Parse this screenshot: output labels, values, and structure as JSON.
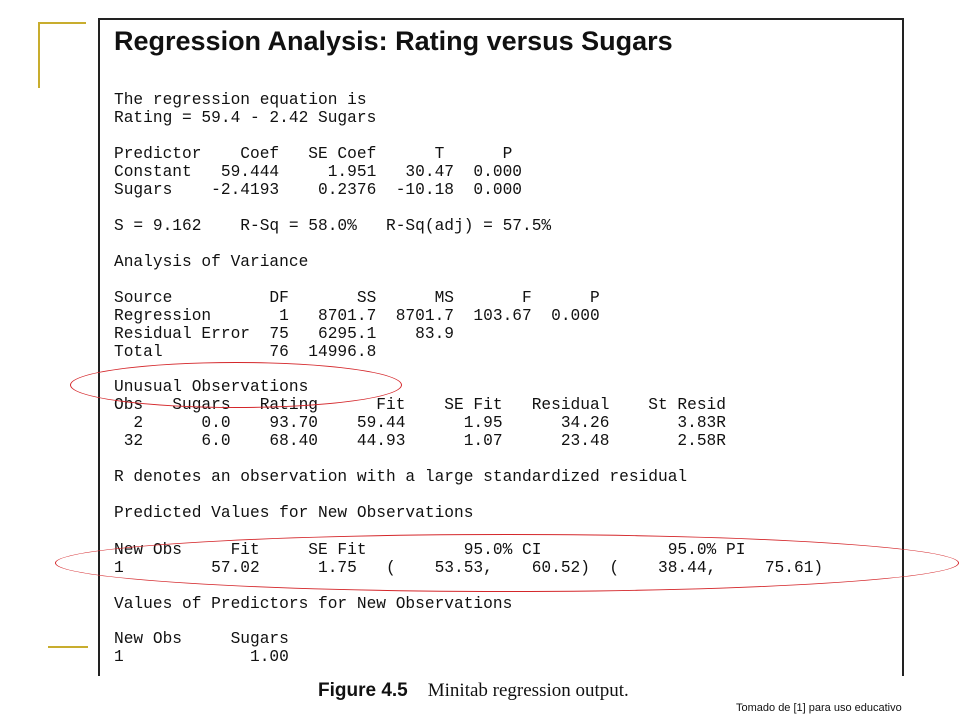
{
  "title": "Regression Analysis: Rating versus Sugars",
  "equation": {
    "line1": "The regression equation is",
    "line2": "Rating = 59.4 - 2.42 Sugars"
  },
  "coefficients": {
    "header": "Predictor    Coef   SE Coef      T      P",
    "rows": [
      "Constant   59.444     1.951   30.47  0.000",
      "Sugars    -2.4193    0.2376  -10.18  0.000"
    ]
  },
  "fit_summary": "S = 9.162    R-Sq = 58.0%   R-Sq(adj) = 57.5%",
  "anova": {
    "title": "Analysis of Variance",
    "header": "Source          DF       SS      MS       F      P",
    "rows": [
      "Regression       1   8701.7  8701.7  103.67  0.000",
      "Residual Error  75   6295.1    83.9",
      "Total           76  14996.8"
    ]
  },
  "unusual": {
    "title": "Unusual Observations",
    "header": "Obs   Sugars   Rating      Fit    SE Fit   Residual    St Resid",
    "rows": [
      "  2      0.0    93.70    59.44      1.95      34.26       3.83R",
      " 32      6.0    68.40    44.93      1.07      23.48       2.58R"
    ]
  },
  "note": "R denotes an observation with a large standardized residual",
  "predicted": {
    "title": "Predicted Values for New Observations",
    "header": "New Obs     Fit     SE Fit          95.0% CI             95.0% PI",
    "row": "1         57.02      1.75   (    53.53,    60.52)  (    38.44,     75.61)"
  },
  "predictors": {
    "title": "Values of Predictors for New Observations",
    "header": "New Obs     Sugars",
    "row": "1             1.00"
  },
  "caption": {
    "label": "Figure 4.5",
    "text": "Minitab regression output."
  },
  "credit": "Tomado de [1] para uso educativo",
  "colors": {
    "highlight_oval": "#d4262a",
    "decoration": "#c8ad2e"
  }
}
